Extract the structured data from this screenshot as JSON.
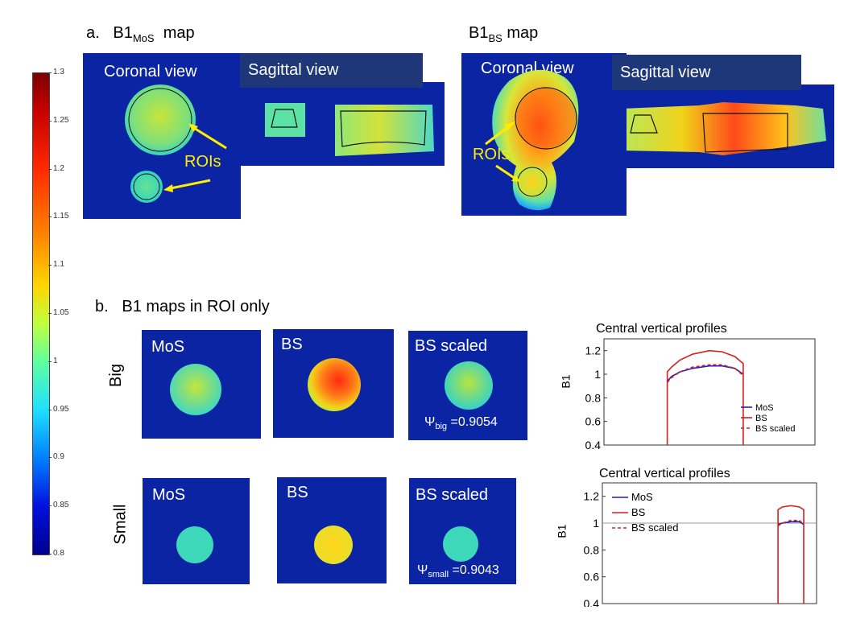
{
  "section_a": {
    "label_prefix": "a.",
    "mos_title_main": "B1",
    "mos_title_sub": "MoS",
    "mos_title_suffix": "map",
    "bs_title_main": "B1",
    "bs_title_sub": "BS",
    "bs_title_suffix": "map",
    "coronal_view": "Coronal view",
    "sagittal_view": "Sagittal view",
    "rois_label": "ROIs"
  },
  "section_b": {
    "label_prefix": "b.",
    "title": "B1 maps in ROI only",
    "row_big": "Big",
    "row_small": "Small",
    "mos": "MoS",
    "bs": "BS",
    "bs_scaled": "BS scaled",
    "psi_symbol": "Ψ",
    "psi_big_sub": "big",
    "psi_big_value": "=0.9054",
    "psi_small_sub": "small",
    "psi_small_value": "=0.9043"
  },
  "colorbar": {
    "ticks": [
      "1.3",
      "1.25",
      "1.2",
      "1.15",
      "1.1",
      "1.05",
      "1",
      "0.95",
      "0.9",
      "0.85",
      "0.8"
    ],
    "min": 0.8,
    "max": 1.3
  },
  "chart_data": [
    {
      "type": "line",
      "title": "Central vertical profiles",
      "ylabel": "B1",
      "xlabel": "",
      "ylim": [
        0.4,
        1.3
      ],
      "yticks": [
        "1.2",
        "1",
        "0.8",
        "0.6",
        "0.4"
      ],
      "legend": [
        "MoS",
        "BS",
        "BS scaled"
      ],
      "legend_position": "right",
      "series": [
        {
          "name": "MoS",
          "color": "#1f1fbf",
          "dash": "solid",
          "x": [
            0.3,
            0.32,
            0.36,
            0.42,
            0.5,
            0.56,
            0.62,
            0.66
          ],
          "y": [
            0.94,
            0.98,
            1.02,
            1.05,
            1.07,
            1.07,
            1.05,
            1.0
          ]
        },
        {
          "name": "BS",
          "color": "#d42020",
          "dash": "solid",
          "x": [
            0.3,
            0.3,
            0.32,
            0.36,
            0.42,
            0.5,
            0.56,
            0.62,
            0.66,
            0.66
          ],
          "y": [
            0.4,
            1.02,
            1.06,
            1.12,
            1.17,
            1.2,
            1.19,
            1.15,
            1.09,
            0.4
          ]
        },
        {
          "name": "BS scaled",
          "color": "#d42020",
          "dash": "dashed",
          "x": [
            0.3,
            0.32,
            0.36,
            0.42,
            0.5,
            0.56,
            0.62,
            0.66
          ],
          "y": [
            0.93,
            0.97,
            1.02,
            1.06,
            1.08,
            1.08,
            1.05,
            0.99
          ]
        }
      ]
    },
    {
      "type": "line",
      "title": "Central vertical profiles",
      "ylabel": "B1",
      "xlabel": "",
      "ylim": [
        0.4,
        1.3
      ],
      "yticks": [
        "1.2",
        "1",
        "0.8",
        "0.6",
        "0.4"
      ],
      "legend": [
        "MoS",
        "BS",
        "BS scaled"
      ],
      "legend_position": "top-left",
      "reference_line": 1.0,
      "series": [
        {
          "name": "MoS",
          "color": "#1f1fbf",
          "dash": "solid",
          "x": [
            0.82,
            0.84,
            0.88,
            0.92,
            0.94
          ],
          "y": [
            0.99,
            1.0,
            1.01,
            1.01,
            0.99
          ]
        },
        {
          "name": "BS",
          "color": "#d42020",
          "dash": "solid",
          "x": [
            0.82,
            0.82,
            0.84,
            0.88,
            0.92,
            0.94,
            0.94
          ],
          "y": [
            0.4,
            1.1,
            1.12,
            1.13,
            1.12,
            1.1,
            0.4
          ]
        },
        {
          "name": "BS scaled",
          "color": "#d42020",
          "dash": "dashed",
          "x": [
            0.82,
            0.84,
            0.88,
            0.92,
            0.94
          ],
          "y": [
            0.98,
            1.0,
            1.02,
            1.02,
            0.99
          ]
        }
      ]
    }
  ]
}
